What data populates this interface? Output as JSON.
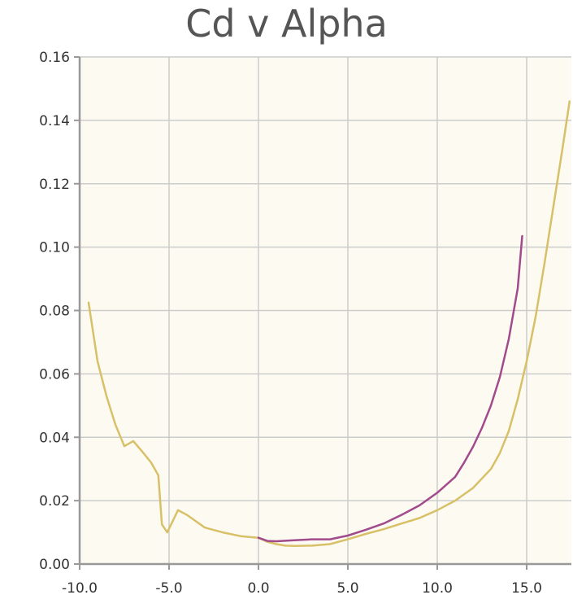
{
  "chart_data": {
    "type": "line",
    "title": "Cd v Alpha",
    "xlabel": "",
    "ylabel": "",
    "xlim": [
      -10.0,
      17.5
    ],
    "ylim": [
      0.0,
      0.16
    ],
    "xticks": [
      "-10.0",
      "-5.0",
      "0.0",
      "5.0",
      "10.0",
      "15.0"
    ],
    "yticks": [
      "0.00",
      "0.02",
      "0.04",
      "0.06",
      "0.08",
      "0.10",
      "0.12",
      "0.14",
      "0.16"
    ],
    "grid": true,
    "background": "#fdfbf1",
    "series": [
      {
        "color": "#d8c068",
        "points": [
          [
            -9.5,
            0.0825
          ],
          [
            -9.0,
            0.064
          ],
          [
            -8.5,
            0.053
          ],
          [
            -8.0,
            0.044
          ],
          [
            -7.5,
            0.0372
          ],
          [
            -7.0,
            0.0388
          ],
          [
            -6.5,
            0.0355
          ],
          [
            -6.0,
            0.032
          ],
          [
            -5.6,
            0.028
          ],
          [
            -5.4,
            0.0125
          ],
          [
            -5.1,
            0.01
          ],
          [
            -4.5,
            0.017
          ],
          [
            -4.0,
            0.0155
          ],
          [
            -3.5,
            0.0135
          ],
          [
            -3.0,
            0.0115
          ],
          [
            -2.0,
            0.01
          ],
          [
            -1.0,
            0.0088
          ],
          [
            0.0,
            0.0083
          ],
          [
            0.5,
            0.007
          ],
          [
            1.0,
            0.0063
          ],
          [
            1.5,
            0.0058
          ],
          [
            2.0,
            0.0057
          ],
          [
            3.0,
            0.0058
          ],
          [
            4.0,
            0.0063
          ],
          [
            5.0,
            0.0078
          ],
          [
            6.0,
            0.0095
          ],
          [
            7.0,
            0.011
          ],
          [
            8.0,
            0.0128
          ],
          [
            9.0,
            0.0145
          ],
          [
            10.0,
            0.017
          ],
          [
            11.0,
            0.02
          ],
          [
            12.0,
            0.024
          ],
          [
            13.0,
            0.03
          ],
          [
            13.5,
            0.035
          ],
          [
            14.0,
            0.042
          ],
          [
            14.5,
            0.052
          ],
          [
            15.0,
            0.064
          ],
          [
            15.5,
            0.078
          ],
          [
            16.0,
            0.095
          ],
          [
            16.5,
            0.113
          ],
          [
            17.0,
            0.131
          ],
          [
            17.4,
            0.146
          ]
        ]
      },
      {
        "color": "#a14a8c",
        "points": [
          [
            0.0,
            0.0083
          ],
          [
            0.5,
            0.0073
          ],
          [
            1.0,
            0.0072
          ],
          [
            2.0,
            0.0075
          ],
          [
            3.0,
            0.0078
          ],
          [
            4.0,
            0.0078
          ],
          [
            5.0,
            0.009
          ],
          [
            6.0,
            0.0108
          ],
          [
            7.0,
            0.0128
          ],
          [
            8.0,
            0.0155
          ],
          [
            9.0,
            0.0185
          ],
          [
            10.0,
            0.0225
          ],
          [
            11.0,
            0.0275
          ],
          [
            11.5,
            0.032
          ],
          [
            12.0,
            0.037
          ],
          [
            12.5,
            0.043
          ],
          [
            13.0,
            0.05
          ],
          [
            13.5,
            0.059
          ],
          [
            14.0,
            0.071
          ],
          [
            14.5,
            0.087
          ],
          [
            14.75,
            0.1035
          ]
        ]
      }
    ]
  }
}
